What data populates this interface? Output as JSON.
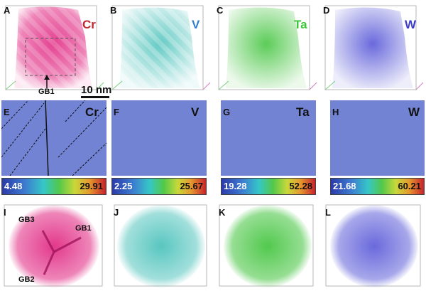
{
  "figure": {
    "row1": [
      {
        "letter": "A",
        "element": "Cr",
        "color": "#e0227f",
        "label_color": "#c1272d"
      },
      {
        "letter": "B",
        "element": "V",
        "color": "#2fb8b0",
        "label_color": "#2f7fd0"
      },
      {
        "letter": "C",
        "element": "Ta",
        "color": "#3fc33a",
        "label_color": "#3fc33a"
      },
      {
        "letter": "D",
        "element": "W",
        "color": "#4f4fd6",
        "label_color": "#3b3bd0"
      }
    ],
    "row2": [
      {
        "letter": "E",
        "element": "Cr",
        "min": "4.48",
        "max": "29.91"
      },
      {
        "letter": "F",
        "element": "V",
        "min": "2.25",
        "max": "25.67"
      },
      {
        "letter": "G",
        "element": "Ta",
        "min": "19.28",
        "max": "52.28"
      },
      {
        "letter": "H",
        "element": "W",
        "min": "21.68",
        "max": "60.21"
      }
    ],
    "row3": [
      {
        "letter": "I",
        "color": "#e0227f"
      },
      {
        "letter": "J",
        "color": "#2fb8b0"
      },
      {
        "letter": "K",
        "color": "#3fc33a"
      },
      {
        "letter": "L",
        "color": "#4f4fd6"
      }
    ],
    "annotations": {
      "gb1_top": "GB1",
      "scale_bar": "10 nm",
      "gb3": "GB3",
      "gb1": "GB1",
      "gb2": "GB2"
    }
  }
}
